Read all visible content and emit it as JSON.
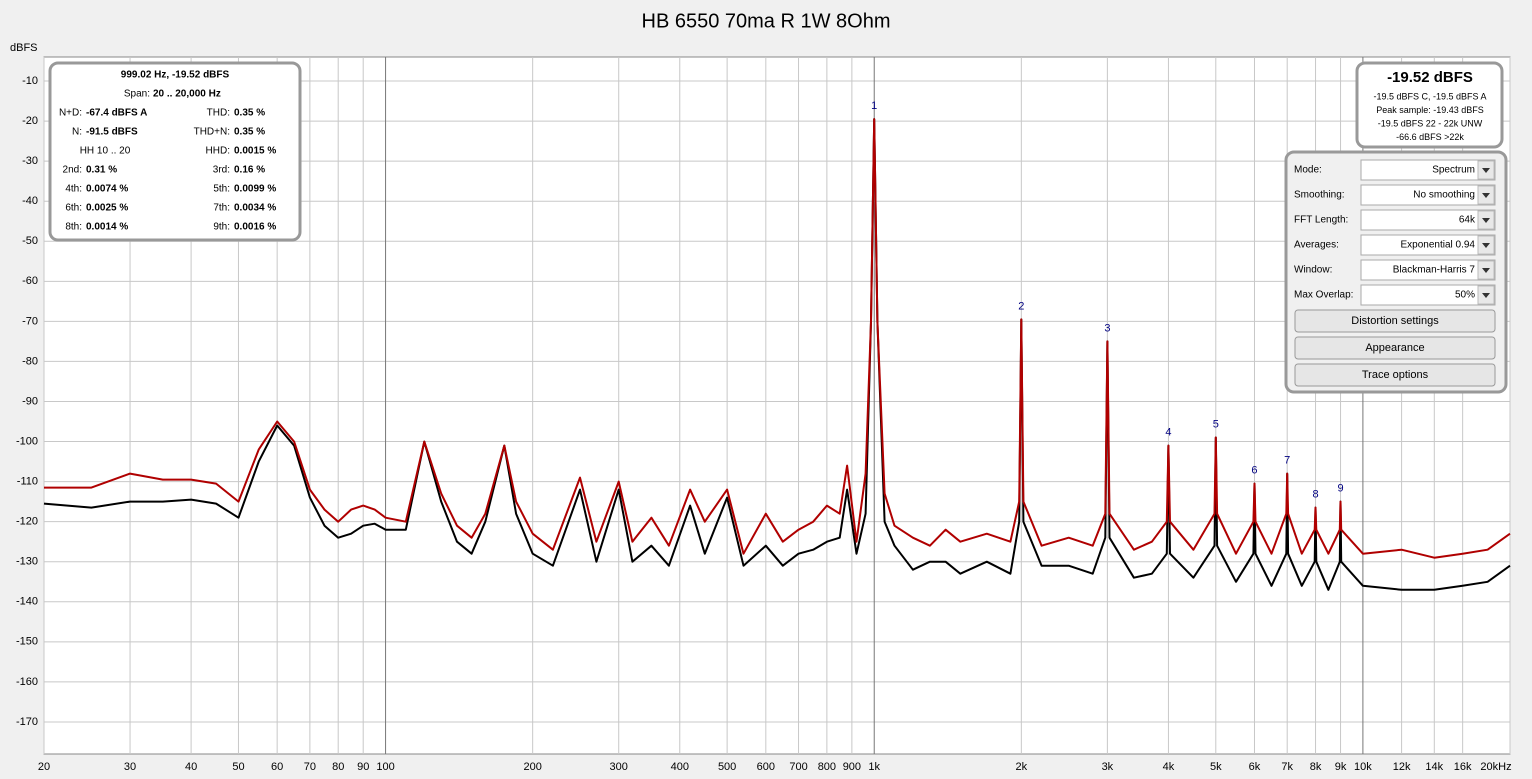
{
  "chart_data": {
    "type": "line",
    "title": "HB 6550 70ma R 1W 8Ohm",
    "y_label": "dBFS",
    "log_x": true,
    "grid": true,
    "xlim": [
      20,
      20000
    ],
    "ylim": [
      -178,
      -4
    ],
    "yticks": [
      -10,
      -20,
      -30,
      -40,
      -50,
      -60,
      -70,
      -80,
      -90,
      -100,
      -110,
      -120,
      -130,
      -140,
      -150,
      -160,
      -170
    ],
    "xticks": [
      20,
      30,
      40,
      50,
      60,
      70,
      80,
      90,
      100,
      200,
      300,
      400,
      500,
      600,
      700,
      800,
      900,
      {
        "value": 1000,
        "label": "1k"
      },
      {
        "value": 2000,
        "label": "2k"
      },
      {
        "value": 3000,
        "label": "3k"
      },
      {
        "value": 4000,
        "label": "4k"
      },
      {
        "value": 5000,
        "label": "5k"
      },
      {
        "value": 6000,
        "label": "6k"
      },
      {
        "value": 7000,
        "label": "7k"
      },
      {
        "value": 8000,
        "label": "8k"
      },
      {
        "value": 9000,
        "label": "9k"
      },
      {
        "value": 10000,
        "label": "10k"
      },
      {
        "value": 12000,
        "label": "12k"
      },
      {
        "value": 14000,
        "label": "14k"
      },
      {
        "value": 16000,
        "label": "16k"
      },
      {
        "value": 20000,
        "label": "20kHz"
      }
    ],
    "x": [
      20,
      25,
      30,
      35,
      40,
      45,
      50,
      55,
      60,
      65,
      70,
      75,
      80,
      85,
      90,
      95,
      100,
      110,
      120,
      130,
      140,
      150,
      160,
      175,
      185,
      200,
      220,
      250,
      270,
      300,
      320,
      350,
      380,
      420,
      450,
      500,
      540,
      600,
      650,
      700,
      750,
      800,
      850,
      880,
      920,
      960,
      985,
      1000,
      1015,
      1050,
      1100,
      1200,
      1300,
      1400,
      1500,
      1700,
      1900,
      1980,
      2000,
      2020,
      2200,
      2500,
      2800,
      2970,
      3000,
      3030,
      3400,
      3700,
      3970,
      4000,
      4030,
      4500,
      4970,
      5000,
      5030,
      5500,
      5970,
      6000,
      6030,
      6500,
      6970,
      7000,
      7030,
      7500,
      7970,
      8000,
      8030,
      8500,
      8970,
      9000,
      9030,
      10000,
      12000,
      14000,
      16000,
      18000,
      20000
    ],
    "series": [
      {
        "color": "#000000",
        "values": [
          -115.5,
          -116.5,
          -115,
          -115,
          -114.5,
          -115.5,
          -119,
          -105,
          -96,
          -101,
          -114,
          -121,
          -124,
          -123,
          -121,
          -120.5,
          -122,
          -122,
          -100,
          -115,
          -125,
          -128,
          -120,
          -101,
          -118,
          -128,
          -131,
          -112,
          -130,
          -112,
          -130,
          -126,
          -131,
          -116,
          -128,
          -114,
          -131,
          -126,
          -131,
          -128,
          -127,
          -125,
          -124,
          -112,
          -128,
          -118,
          -70,
          -19.5,
          -70,
          -120,
          -126,
          -132,
          -130,
          -130,
          -133,
          -130,
          -133,
          -120,
          -69.5,
          -120,
          -131,
          -131,
          -133,
          -124,
          -75,
          -124,
          -134,
          -133,
          -128,
          -101,
          -128,
          -134,
          -126,
          -99,
          -126,
          -135,
          -128,
          -110.5,
          -128,
          -136,
          -128,
          -108,
          -128,
          -136,
          -130,
          -116.5,
          -130,
          -137,
          -130,
          -115,
          -130,
          -136,
          -137,
          -137,
          -136,
          -135,
          -131
        ]
      },
      {
        "color": "#b00000",
        "values": [
          -111.5,
          -111.5,
          -108,
          -109.5,
          -109.5,
          -110.5,
          -115,
          -102,
          -95,
          -100,
          -112,
          -117,
          -120,
          -117,
          -116,
          -117,
          -119,
          -120,
          -100,
          -113,
          -121,
          -124,
          -118,
          -101,
          -115,
          -123,
          -127,
          -109,
          -125,
          -110,
          -125,
          -119,
          -126,
          -112,
          -120,
          -112,
          -128,
          -118,
          -125,
          -122,
          -120,
          -116,
          -118,
          -106,
          -125,
          -108,
          -70,
          -19.5,
          -70,
          -113,
          -121,
          -124,
          -126,
          -122,
          -125,
          -123,
          -125,
          -115,
          -69.5,
          -115,
          -126,
          -124,
          -126,
          -118,
          -75,
          -118,
          -127,
          -125,
          -120,
          -101,
          -120,
          -127,
          -118,
          -99,
          -118,
          -128,
          -120,
          -110.5,
          -120,
          -128,
          -118,
          -108,
          -118,
          -128,
          -122,
          -116.5,
          -122,
          -128,
          -122,
          -115,
          -122,
          -128,
          -127,
          -129,
          -128,
          -127,
          -123
        ]
      }
    ],
    "annotations": [
      {
        "text": "1",
        "x": 1000,
        "y": -19.5
      },
      {
        "text": "2",
        "x": 2000,
        "y": -69.5
      },
      {
        "text": "3",
        "x": 3000,
        "y": -75
      },
      {
        "text": "4",
        "x": 4000,
        "y": -101
      },
      {
        "text": "5",
        "x": 5000,
        "y": -99
      },
      {
        "text": "6",
        "x": 6000,
        "y": -110.5
      },
      {
        "text": "7",
        "x": 7000,
        "y": -108
      },
      {
        "text": "8",
        "x": 8000,
        "y": -116.5
      },
      {
        "text": "9",
        "x": 9000,
        "y": -115
      }
    ]
  },
  "info_panel": {
    "heading": "999.02 Hz, -19.52 dBFS",
    "span_label": "Span:",
    "span_value": "20 .. 20,000 Hz",
    "rows": [
      [
        {
          "label": "N+D:",
          "value": "-67.4 dBFS A"
        },
        {
          "label": "THD:",
          "value": "0.35 %"
        }
      ],
      [
        {
          "label": "N:",
          "value": "-91.5 dBFS"
        },
        {
          "label": "THD+N:",
          "value": "0.35 %"
        }
      ],
      [
        {
          "label": "HH 10 .. 20"
        },
        {
          "label": "HHD:",
          "value": "0.0015 %"
        }
      ],
      [
        {
          "label": "2nd:",
          "value": "0.31 %"
        },
        {
          "label": "3rd:",
          "value": "0.16 %"
        }
      ],
      [
        {
          "label": "4th:",
          "value": "0.0074 %"
        },
        {
          "label": "5th:",
          "value": "0.0099 %"
        }
      ],
      [
        {
          "label": "6th:",
          "value": "0.0025 %"
        },
        {
          "label": "7th:",
          "value": "0.0034 %"
        }
      ],
      [
        {
          "label": "8th:",
          "value": "0.0014 %"
        },
        {
          "label": "9th:",
          "value": "0.0016 %"
        }
      ]
    ]
  },
  "level_panel": {
    "level": "-19.52 dBFS",
    "lines": [
      "-19.5 dBFS C, -19.5 dBFS A",
      "Peak sample: -19.43 dBFS",
      "-19.5 dBFS 22 - 22k UNW",
      "-66.6 dBFS >22k"
    ]
  },
  "controls": {
    "fields": [
      {
        "label": "Mode:",
        "value": "Spectrum"
      },
      {
        "label": "Smoothing:",
        "value": "No  smoothing"
      },
      {
        "label": "FFT Length:",
        "value": "64k"
      },
      {
        "label": "Averages:",
        "value": "Exponential 0.94"
      },
      {
        "label": "Window:",
        "value": "Blackman-Harris 7"
      },
      {
        "label": "Max Overlap:",
        "value": "50%"
      }
    ],
    "buttons": [
      "Distortion settings",
      "Appearance",
      "Trace options"
    ]
  }
}
